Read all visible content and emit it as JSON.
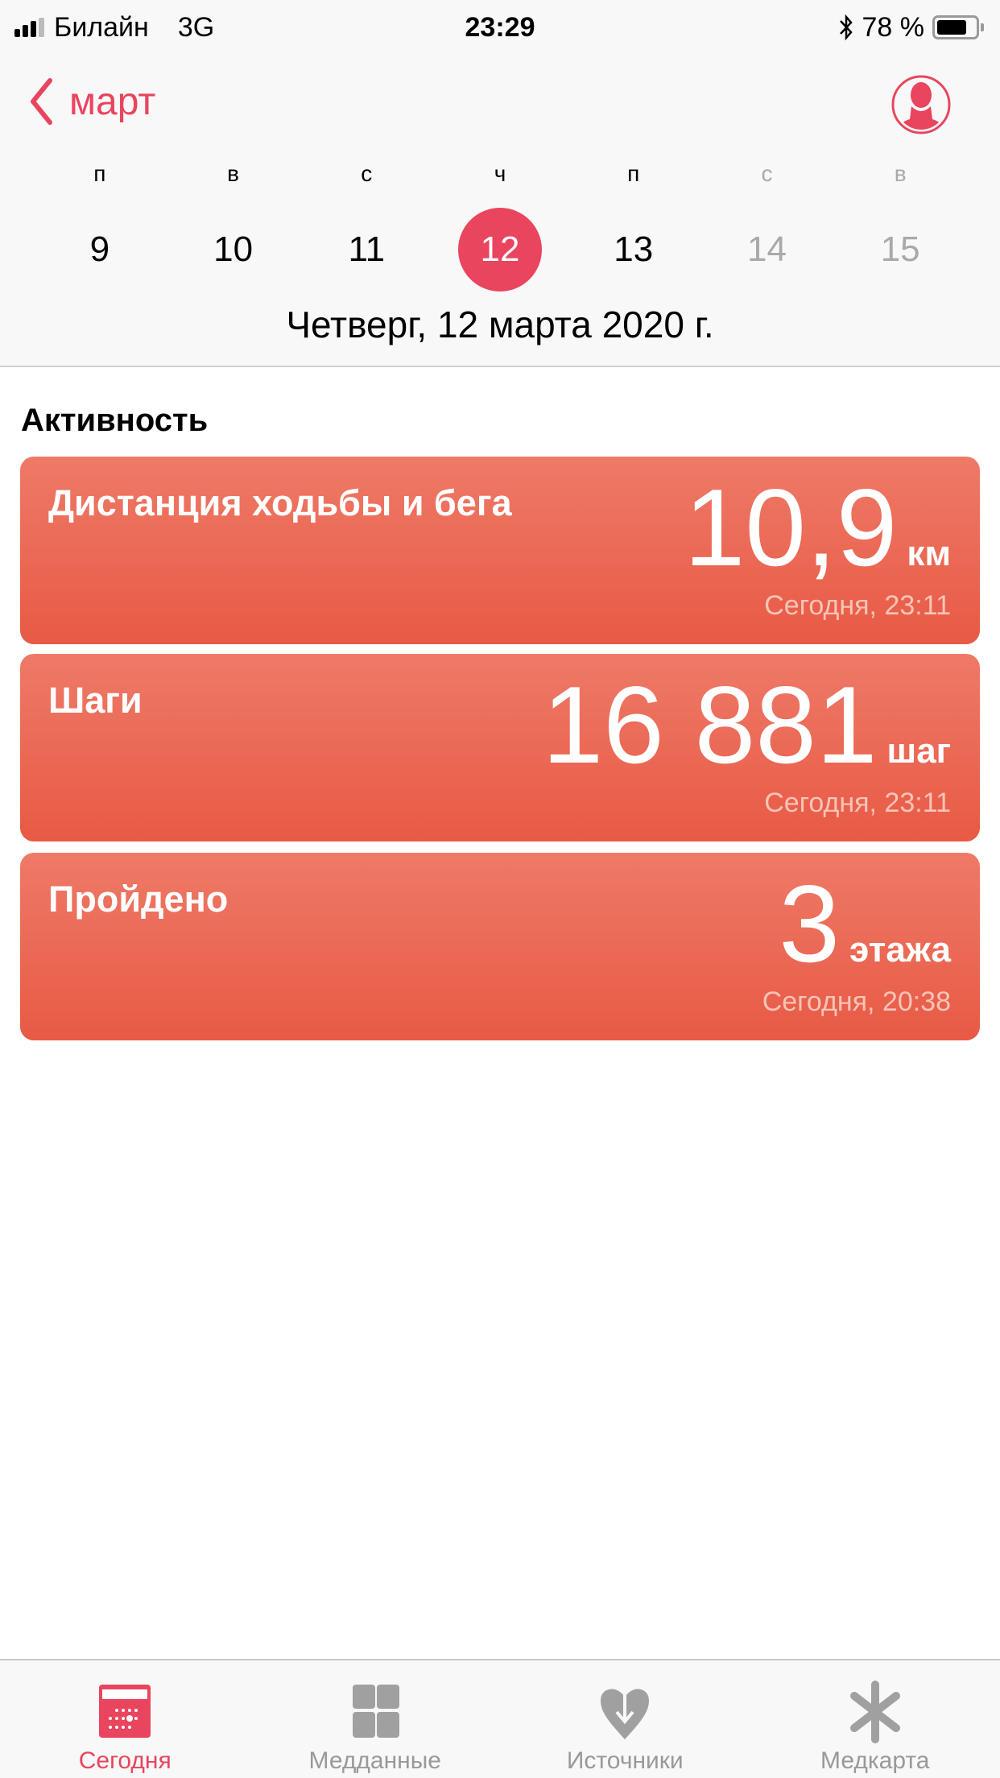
{
  "status_bar": {
    "carrier": "Билайн",
    "network": "3G",
    "time": "23:29",
    "battery_percent": "78 %",
    "battery_level": 78,
    "signal_bars": 3
  },
  "nav": {
    "back_label": "март",
    "profile_icon": "person-circle-icon"
  },
  "week": {
    "weekdays": [
      "п",
      "в",
      "с",
      "ч",
      "п",
      "с",
      "в"
    ],
    "days": [
      "9",
      "10",
      "11",
      "12",
      "13",
      "14",
      "15"
    ],
    "selected_index": 3,
    "dimmed_indices": [
      5,
      6
    ],
    "full_date": "Четверг, 12 марта 2020 г."
  },
  "section_title": "Активность",
  "cards": [
    {
      "title": "Дистанция ходьбы и бега",
      "value": "10,9",
      "unit": "км",
      "time": "Сегодня, 23:11"
    },
    {
      "title": "Шаги",
      "value": "16 881",
      "unit": "шаг",
      "time": "Сегодня, 23:11"
    },
    {
      "title": "Пройдено",
      "value": "3",
      "unit": "этажа",
      "time": "Сегодня, 20:38"
    }
  ],
  "tabs": [
    {
      "label": "Сегодня",
      "icon": "calendar-icon",
      "active": true
    },
    {
      "label": "Медданные",
      "icon": "grid-icon",
      "active": false
    },
    {
      "label": "Источники",
      "icon": "heart-download-icon",
      "active": false
    },
    {
      "label": "Медкарта",
      "icon": "asterisk-icon",
      "active": false
    }
  ],
  "colors": {
    "accent": "#e9455e",
    "card_top": "#ee7a67",
    "card_bottom": "#e85a45",
    "inactive": "#999999"
  }
}
